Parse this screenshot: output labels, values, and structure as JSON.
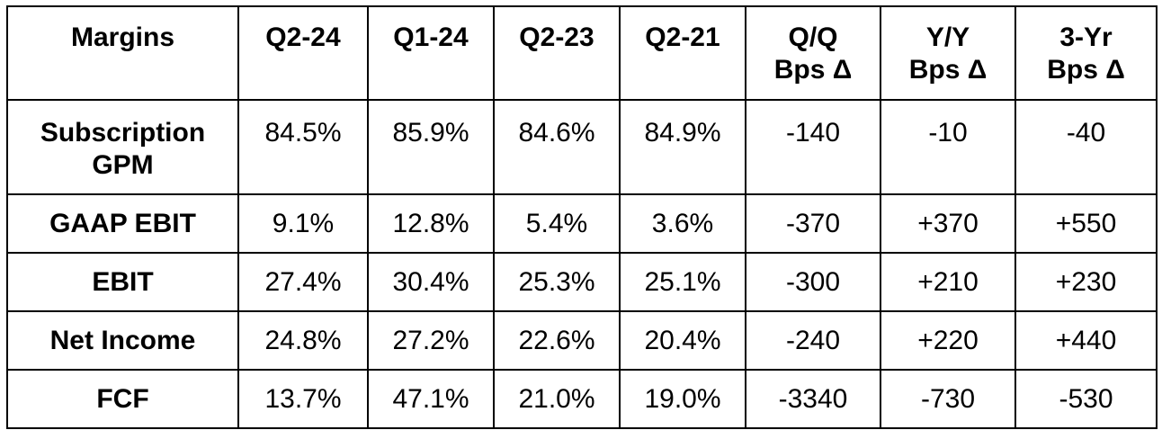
{
  "table": {
    "headers": [
      "Margins",
      "Q2-24",
      "Q1-24",
      "Q2-23",
      "Q2-21",
      "Q/Q\nBps Δ",
      "Y/Y\nBps Δ",
      "3-Yr\nBps Δ"
    ],
    "rows": [
      {
        "label": "Subscription\nGPM",
        "values": [
          "84.5%",
          "85.9%",
          "84.6%",
          "84.9%",
          "-140",
          "-10",
          "-40"
        ]
      },
      {
        "label": "GAAP EBIT",
        "values": [
          "9.1%",
          "12.8%",
          "5.4%",
          "3.6%",
          "-370",
          "+370",
          "+550"
        ]
      },
      {
        "label": "EBIT",
        "values": [
          "27.4%",
          "30.4%",
          "25.3%",
          "25.1%",
          "-300",
          "+210",
          "+230"
        ]
      },
      {
        "label": "Net Income",
        "values": [
          "24.8%",
          "27.2%",
          "22.6%",
          "20.4%",
          "-240",
          "+220",
          "+440"
        ]
      },
      {
        "label": "FCF",
        "values": [
          "13.7%",
          "47.1%",
          "21.0%",
          "19.0%",
          "-3340",
          "-730",
          "-530"
        ]
      }
    ]
  }
}
